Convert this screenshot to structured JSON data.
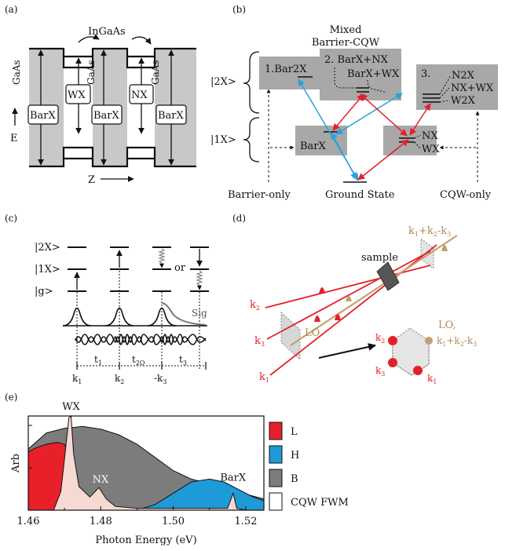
{
  "panels": {
    "a": {
      "tag": "(a)",
      "ingaas": "InGaAs",
      "gaas": "GaAs",
      "barx": "BarX",
      "wx": "WX",
      "nx": "NX",
      "e_axis": "E",
      "z_axis": "Z"
    },
    "b": {
      "tag": "(b)",
      "mixed_title_1": "Mixed",
      "mixed_title_2": "Barrier-CQW",
      "state_2x": "|2X>",
      "state_1x": "|1X>",
      "box1": "1.Bar2X",
      "box2_a": "2. BarX+NX",
      "box2_b": "BarX+WX",
      "box3_num": "3.",
      "box3_a": "N2X",
      "box3_b": "NX+WX",
      "box3_c": "W2X",
      "barx": "BarX",
      "nx": "NX",
      "wx": "WX",
      "ground": "Ground State",
      "barrier_only": "Barrier-only",
      "cqw_only": "CQW-only"
    },
    "c": {
      "tag": "(c)",
      "l2x": "|2X>",
      "l1x": "|1X>",
      "lg": "|g>",
      "or": "or",
      "sig": "Sig",
      "t1": "t",
      "t1_sub": "1",
      "t2q": "t",
      "t2q_sub": "2Q",
      "t3": "t",
      "t3_sub": "3",
      "k1": "k",
      "k1_sub": "1",
      "k2": "k",
      "k2_sub": "2",
      "mk3": "-k",
      "mk3_sub": "3"
    },
    "d": {
      "tag": "(d)",
      "sample": "sample",
      "sig_k": "k",
      "sig_sub": "1",
      "sig_rest1": "+k",
      "sig_sub2": "2",
      "sig_rest2": "-k",
      "sig_sub3": "3",
      "lo": "LO",
      "k2": "k",
      "k2_sub": "2",
      "k3": "k",
      "k3_sub": "3",
      "k1": "k",
      "k1_sub": "1",
      "lo2": "LO,",
      "lo2_k": "k",
      "lo2_rest": "+k",
      "lo2_rest2": "-k"
    },
    "e": {
      "tag": "(e)"
    }
  },
  "chart_data": {
    "type": "area",
    "xlabel": "Photon Energy (eV)",
    "ylabel": "Arb",
    "xlim": [
      1.46,
      1.525
    ],
    "x_ticks": [
      "1.46",
      "1.48",
      "1.50",
      "1.52"
    ],
    "annotations": [
      "WX",
      "NX",
      "BarX"
    ],
    "legend_position": "right",
    "series": [
      {
        "name": "L",
        "color": "#e8202a",
        "x": [
          1.46,
          1.462,
          1.465,
          1.468,
          1.47,
          1.471,
          1.4715,
          1.473,
          1.475,
          1.478,
          1.48,
          1.482
        ],
        "y": [
          0.62,
          0.66,
          0.7,
          0.72,
          0.7,
          0.6,
          0.4,
          0.25,
          0.1,
          0.06,
          0.03,
          0.0
        ]
      },
      {
        "name": "H",
        "color": "#1e9ad6",
        "x": [
          1.49,
          1.495,
          1.5,
          1.505,
          1.51,
          1.514,
          1.518,
          1.522,
          1.525
        ],
        "y": [
          0.0,
          0.06,
          0.18,
          0.3,
          0.33,
          0.3,
          0.22,
          0.14,
          0.1
        ]
      },
      {
        "name": "B",
        "color": "#7c7c7c",
        "x": [
          1.46,
          1.465,
          1.47,
          1.473,
          1.475,
          1.48,
          1.485,
          1.49,
          1.495,
          1.5,
          1.505,
          1.51,
          1.515,
          1.52,
          1.525
        ],
        "y": [
          0.65,
          0.82,
          0.87,
          0.88,
          0.89,
          0.86,
          0.8,
          0.7,
          0.56,
          0.42,
          0.33,
          0.28,
          0.23,
          0.17,
          0.12
        ]
      },
      {
        "name": "CQW FWM",
        "color": "#f6d9d2",
        "x": [
          1.467,
          1.469,
          1.47,
          1.4712,
          1.4718,
          1.4725,
          1.474,
          1.477,
          1.4795,
          1.4815,
          1.484,
          1.49,
          1.5,
          1.515,
          1.5165,
          1.5175,
          1.52
        ],
        "y": [
          0.0,
          0.2,
          0.55,
          0.98,
          1.0,
          0.6,
          0.25,
          0.14,
          0.24,
          0.12,
          0.04,
          0.02,
          0.02,
          0.02,
          0.18,
          0.02,
          0.0
        ]
      }
    ]
  }
}
